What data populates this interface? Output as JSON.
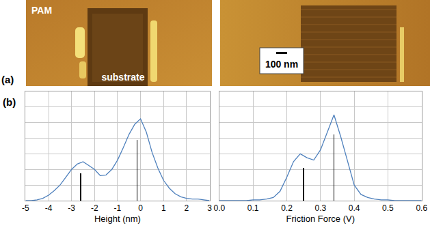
{
  "images": {
    "panel_label": "(a)",
    "left_labels": [
      "PAM",
      "substrate"
    ],
    "scale_bar": "100 nm"
  },
  "chart_data": [
    {
      "type": "line",
      "panel_label": "(b)",
      "x_label": "Height (nm)",
      "xlim": [
        -5,
        3
      ],
      "xticks": [
        -5,
        -4,
        -3,
        -2,
        -1,
        0,
        1,
        2,
        3
      ],
      "ylim": [
        0,
        1.4
      ],
      "yticks": [
        0,
        0.2,
        0.4,
        0.6,
        0.8,
        1.0,
        1.2,
        1.4
      ],
      "tick_labels": "x",
      "grid": true,
      "series": [
        {
          "type": "line",
          "color": "#4f81bd",
          "x": [
            -5,
            -4.75,
            -4.5,
            -4.25,
            -4,
            -3.75,
            -3.5,
            -3.25,
            -3,
            -2.75,
            -2.5,
            -2.25,
            -2,
            -1.75,
            -1.5,
            -1.25,
            -1,
            -0.75,
            -0.5,
            -0.25,
            0,
            0.25,
            0.5,
            0.75,
            1,
            1.25,
            1.5,
            1.75,
            2,
            2.25,
            2.5,
            2.75,
            3
          ],
          "values": [
            0,
            0,
            0.01,
            0.03,
            0.07,
            0.13,
            0.2,
            0.3,
            0.4,
            0.47,
            0.5,
            0.45,
            0.4,
            0.32,
            0.33,
            0.4,
            0.52,
            0.68,
            0.85,
            0.98,
            1.05,
            0.88,
            0.62,
            0.42,
            0.26,
            0.16,
            0.09,
            0.05,
            0.03,
            0.02,
            0.02,
            0.01,
            0
          ]
        },
        {
          "type": "bar",
          "color": "#000000",
          "x": [
            -2.6,
            -0.15
          ],
          "values": [
            0.35,
            0.78
          ]
        }
      ]
    },
    {
      "type": "line",
      "x_label": "Friction Force (V)",
      "xlim": [
        0,
        0.6
      ],
      "xticks": [
        {
          "value": 0,
          "label": "0.0"
        },
        0.1,
        0.2,
        0.3,
        0.4,
        0.5,
        0.6
      ],
      "ylim": [
        0,
        1.4
      ],
      "yticks": [
        0,
        0.2,
        0.4,
        0.6,
        0.8,
        1.0,
        1.2,
        1.4
      ],
      "tick_labels": "x",
      "grid": true,
      "series": [
        {
          "type": "line",
          "color": "#4f81bd",
          "x": [
            0,
            0.02,
            0.04,
            0.06,
            0.08,
            0.1,
            0.12,
            0.14,
            0.16,
            0.18,
            0.2,
            0.22,
            0.24,
            0.26,
            0.28,
            0.3,
            0.32,
            0.34,
            0.36,
            0.38,
            0.4,
            0.42,
            0.44,
            0.46,
            0.48,
            0.5,
            0.52,
            0.54,
            0.56,
            0.58,
            0.6
          ],
          "values": [
            0,
            0,
            0,
            0,
            0,
            0.01,
            0.01,
            0.02,
            0.04,
            0.12,
            0.3,
            0.5,
            0.6,
            0.55,
            0.52,
            0.65,
            0.88,
            1.1,
            0.82,
            0.5,
            0.2,
            0.08,
            0.04,
            0.02,
            0.01,
            0.01,
            0,
            0,
            0,
            0,
            0
          ]
        },
        {
          "type": "bar",
          "color": "#000000",
          "x": [
            0.25,
            0.34
          ],
          "values": [
            0.42,
            0.85
          ]
        }
      ]
    }
  ]
}
